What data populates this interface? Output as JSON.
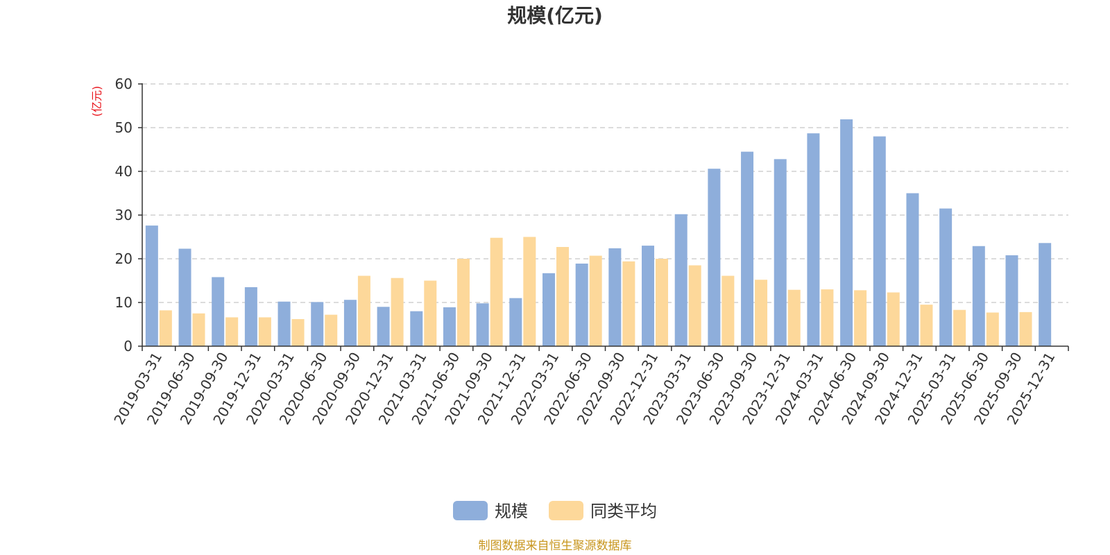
{
  "chart_data": {
    "type": "bar",
    "title": "规模(亿元)",
    "ylabel": "(亿元)",
    "ylim": [
      0,
      60
    ],
    "yticks": [
      0,
      10,
      20,
      30,
      40,
      50,
      60
    ],
    "grid": true,
    "legend_position": "bottom",
    "categories": [
      "2019-03-31",
      "2019-06-30",
      "2019-09-30",
      "2019-12-31",
      "2020-03-31",
      "2020-06-30",
      "2020-09-30",
      "2020-12-31",
      "2021-03-31",
      "2021-06-30",
      "2021-09-30",
      "2021-12-31",
      "2022-03-31",
      "2022-06-30",
      "2022-09-30",
      "2022-12-31",
      "2023-03-31",
      "2023-06-30",
      "2023-09-30",
      "2023-12-31",
      "2024-03-31",
      "2024-06-30",
      "2024-09-30",
      "2024-12-31",
      "2025-03-31",
      "2025-06-30",
      "2025-09-30",
      "2025-12-31"
    ],
    "series": [
      {
        "name": "规模",
        "color": "#8eaedb",
        "values": [
          27.6,
          22.3,
          15.8,
          13.5,
          10.2,
          10.1,
          10.6,
          9.0,
          8.0,
          8.9,
          9.8,
          11.0,
          16.7,
          18.9,
          22.4,
          23.0,
          30.2,
          40.6,
          44.5,
          42.8,
          48.7,
          51.9,
          48.0,
          35.0,
          31.5,
          22.9,
          20.8,
          23.6
        ]
      },
      {
        "name": "同类平均",
        "color": "#fdd89a",
        "values": [
          8.2,
          7.5,
          6.6,
          6.6,
          6.2,
          7.2,
          16.1,
          15.6,
          15.0,
          20.0,
          24.8,
          25.0,
          22.7,
          20.7,
          19.4,
          20.0,
          18.5,
          16.1,
          15.2,
          12.9,
          13.0,
          12.8,
          12.3,
          9.5,
          8.3,
          7.7,
          7.8,
          null
        ]
      }
    ]
  },
  "source": "制图数据来自恒生聚源数据库"
}
